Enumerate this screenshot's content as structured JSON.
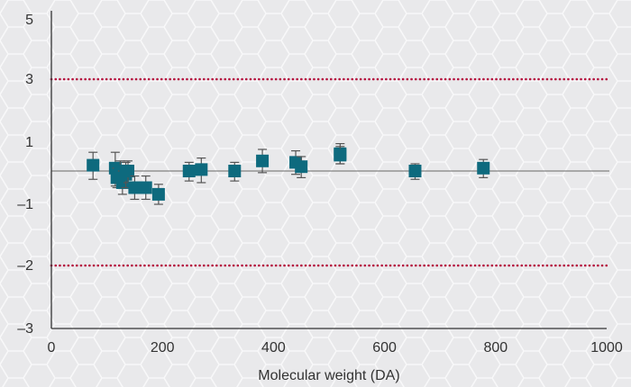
{
  "chart_data": {
    "type": "scatter",
    "title": "",
    "xlabel": "Molecular weight (DA)",
    "ylabel": "",
    "xlim": [
      0,
      1000
    ],
    "x_ticks": [
      0,
      200,
      400,
      600,
      800,
      1000
    ],
    "y_ticks": [
      {
        "value": 5,
        "label": "5"
      },
      {
        "value": 3,
        "label": "3"
      },
      {
        "value": 1,
        "label": "1"
      },
      {
        "value": -1,
        "label": "–1"
      },
      {
        "value": -2,
        "label": "–2"
      },
      {
        "value": -3,
        "label": "–3"
      }
    ],
    "reference_line": 0,
    "limit_lines": [
      3,
      -2
    ],
    "grid": false,
    "colors": {
      "marker": "#0e6a7e",
      "limit_line": "#b5123f",
      "axis": "#333333",
      "error_bar": "#555555"
    },
    "points": [
      {
        "x": 75,
        "y": 0.2,
        "err": 0.45
      },
      {
        "x": 115,
        "y": 0.1,
        "err": 0.55
      },
      {
        "x": 118,
        "y": -0.2,
        "err": 0.3
      },
      {
        "x": 124,
        "y": 0.0,
        "err": 0.35
      },
      {
        "x": 128,
        "y": -0.35,
        "err": 0.35
      },
      {
        "x": 134,
        "y": -0.1,
        "err": 0.4
      },
      {
        "x": 138,
        "y": 0.0,
        "err": 0.35
      },
      {
        "x": 150,
        "y": -0.5,
        "err": 0.35
      },
      {
        "x": 170,
        "y": -0.5,
        "err": 0.35
      },
      {
        "x": 193,
        "y": -0.7,
        "err": 0.3
      },
      {
        "x": 248,
        "y": 0.0,
        "err": 0.3
      },
      {
        "x": 270,
        "y": 0.05,
        "err": 0.4
      },
      {
        "x": 330,
        "y": 0.0,
        "err": 0.3
      },
      {
        "x": 380,
        "y": 0.35,
        "err": 0.4
      },
      {
        "x": 440,
        "y": 0.3,
        "err": 0.4
      },
      {
        "x": 450,
        "y": 0.15,
        "err": 0.35
      },
      {
        "x": 520,
        "y": 0.6,
        "err": 0.35
      },
      {
        "x": 520,
        "y": 0.55,
        "err": 0.3
      },
      {
        "x": 655,
        "y": 0.0,
        "err": 0.25
      },
      {
        "x": 778,
        "y": 0.1,
        "err": 0.3
      }
    ]
  }
}
